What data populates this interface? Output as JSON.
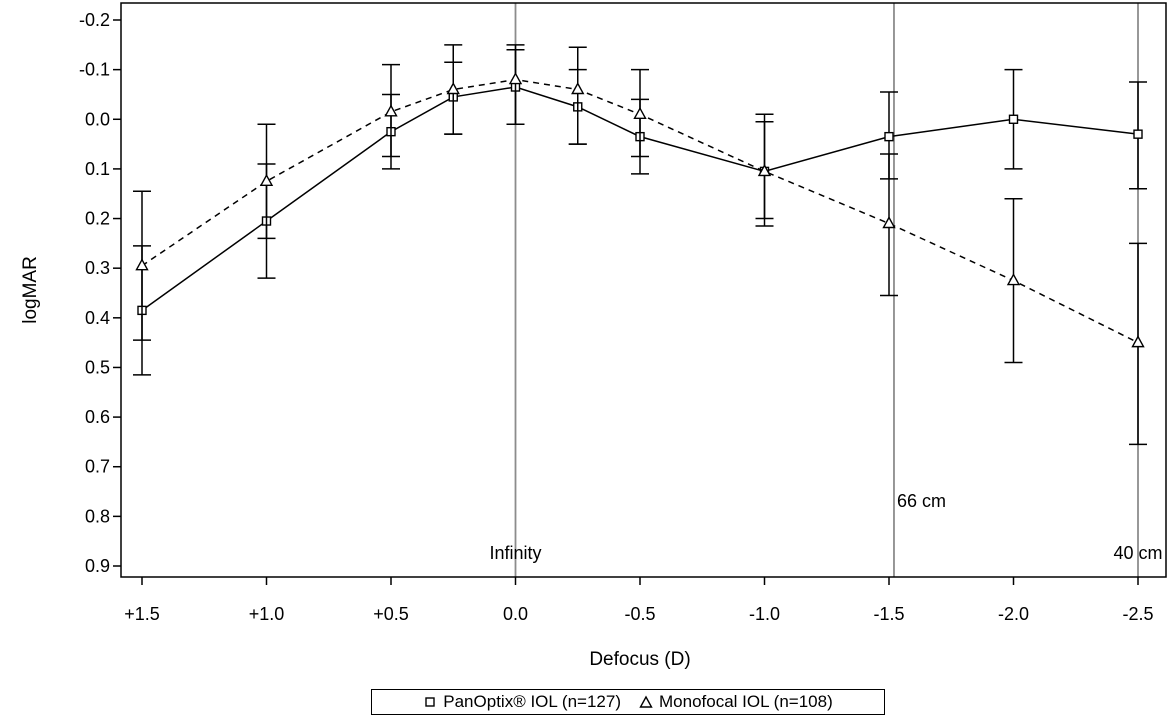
{
  "chart_data": {
    "type": "line",
    "xlabel": "Defocus (D)",
    "ylabel": "logMAR",
    "x": [
      1.5,
      1.0,
      0.5,
      0.25,
      0.0,
      -0.25,
      -0.5,
      -1.0,
      -1.5,
      -2.0,
      -2.5
    ],
    "x_tick_values": [
      1.5,
      1.0,
      0.5,
      0.0,
      -0.5,
      -1.0,
      -1.5,
      -2.0,
      -2.5
    ],
    "x_tick_labels": [
      "+1.5",
      "+1.0",
      "+0.5",
      "0.0",
      "-0.5",
      "-1.0",
      "-1.5",
      "-2.0",
      "-2.5"
    ],
    "xlim": [
      1.5,
      -2.5
    ],
    "y_tick_values": [
      -0.2,
      -0.1,
      0.0,
      0.1,
      0.2,
      0.3,
      0.4,
      0.5,
      0.6,
      0.7,
      0.8,
      0.9
    ],
    "y_tick_labels": [
      "-0.2",
      "-0.1",
      "0.0",
      "0.1",
      "0.2",
      "0.3",
      "0.4",
      "0.5",
      "0.6",
      "0.7",
      "0.8",
      "0.9"
    ],
    "ylim": [
      -0.21,
      0.92
    ],
    "y_inverted": true,
    "grid": false,
    "legend_position": "bottom",
    "series": [
      {
        "name": "PanOptix® IOL (n=127)",
        "marker": "square",
        "line_style": "solid",
        "values": [
          0.385,
          0.205,
          0.025,
          -0.045,
          -0.065,
          -0.025,
          0.035,
          0.105,
          0.035,
          0.0,
          0.03
        ],
        "err_low": [
          0.255,
          0.09,
          -0.05,
          -0.115,
          -0.14,
          -0.1,
          -0.04,
          0.005,
          -0.055,
          -0.1,
          -0.075
        ],
        "err_high": [
          0.515,
          0.32,
          0.1,
          0.03,
          0.01,
          0.05,
          0.11,
          0.2,
          0.12,
          0.1,
          0.14
        ]
      },
      {
        "name": "Monofocal IOL (n=108)",
        "marker": "triangle",
        "line_style": "dashed",
        "values": [
          0.295,
          0.125,
          -0.015,
          -0.06,
          -0.08,
          -0.06,
          -0.01,
          0.105,
          0.21,
          0.325,
          0.45
        ],
        "err_low": [
          0.145,
          0.01,
          -0.11,
          -0.15,
          -0.15,
          -0.145,
          -0.1,
          -0.01,
          0.07,
          0.16,
          0.25
        ],
        "err_high": [
          0.445,
          0.24,
          0.075,
          0.03,
          0.01,
          0.05,
          0.075,
          0.215,
          0.355,
          0.49,
          0.655
        ]
      }
    ],
    "reference_lines": [
      {
        "x": 0.0,
        "label": "Infinity"
      },
      {
        "x": -1.52,
        "label": "66 cm"
      },
      {
        "x": -2.5,
        "label": "40 cm"
      }
    ]
  },
  "colors": {
    "axis": "#000000",
    "reference_line": "#8c8c8c",
    "series_line": "#000000"
  }
}
